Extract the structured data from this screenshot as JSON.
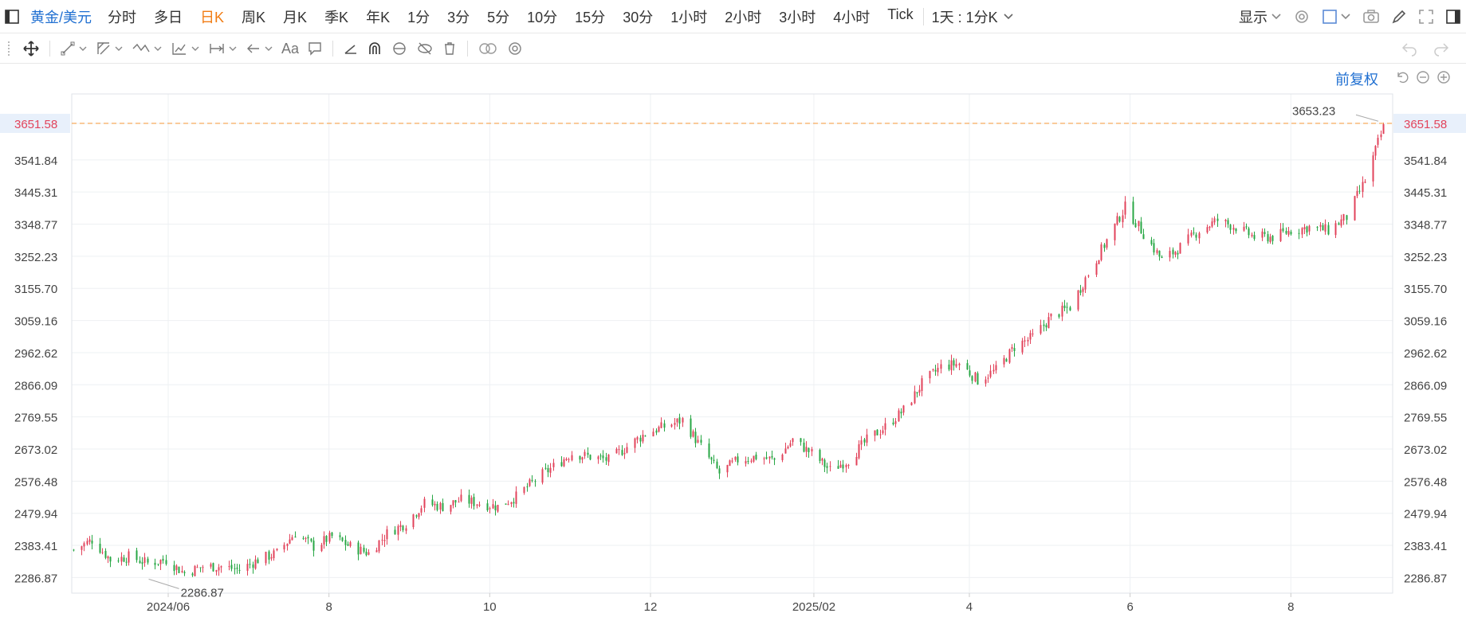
{
  "topbar": {
    "symbol": "黄金/美元",
    "periods": [
      "分时",
      "多日",
      "日K",
      "周K",
      "月K",
      "季K",
      "年K",
      "1分",
      "3分",
      "5分",
      "10分",
      "15分",
      "30分",
      "1小时",
      "2小时",
      "3小时",
      "4小时",
      "Tick"
    ],
    "active_period": "日K",
    "compare_dropdown": "1天 : 1分K",
    "display_label": "显示"
  },
  "toolbar": {
    "text_tool_label": "Aa"
  },
  "adjust": {
    "label": "前复权"
  },
  "colors": {
    "up": "#e2435b",
    "down": "#28a745",
    "accent": "#1f6fd1",
    "active": "#f17c13",
    "price_line": "#f5a04a"
  },
  "chart_data": {
    "type": "candlestick",
    "y_ticks": [
      "3651.58",
      "3541.84",
      "3445.31",
      "3348.77",
      "3252.23",
      "3155.70",
      "3059.16",
      "2962.62",
      "2866.09",
      "2769.55",
      "2673.02",
      "2576.48",
      "2479.94",
      "2383.41",
      "2286.87"
    ],
    "x_ticks": [
      "2024/06",
      "8",
      "10",
      "12",
      "2025/02",
      "4",
      "6",
      "8"
    ],
    "current_price": "3651.58",
    "high_marker": "3653.23",
    "low_marker": "2286.87",
    "ylim": [
      2240,
      3740
    ],
    "x_range": [
      "2024/04/26",
      "2025/09/05"
    ],
    "grid": true,
    "closes_anchor_dates": [
      "2024/04/26",
      "2024/05/03",
      "2024/05/10",
      "2024/05/17",
      "2024/05/24",
      "2024/05/31",
      "2024/06/07",
      "2024/06/14",
      "2024/06/21",
      "2024/06/28",
      "2024/07/05",
      "2024/07/12",
      "2024/07/19",
      "2024/07/26",
      "2024/08/02",
      "2024/08/09",
      "2024/08/16",
      "2024/08/23",
      "2024/08/30",
      "2024/09/06",
      "2024/09/13",
      "2024/09/20",
      "2024/09/27",
      "2024/10/04",
      "2024/10/11",
      "2024/10/18",
      "2024/10/25",
      "2024/11/01",
      "2024/11/08",
      "2024/11/15",
      "2024/11/22",
      "2024/11/29",
      "2024/12/06",
      "2024/12/13",
      "2024/12/20",
      "2024/12/27",
      "2025/01/03",
      "2025/01/10",
      "2025/01/17",
      "2025/01/24",
      "2025/01/31",
      "2025/02/07",
      "2025/02/14",
      "2025/02/21",
      "2025/02/28",
      "2025/03/07",
      "2025/03/14",
      "2025/03/21",
      "2025/03/28",
      "2025/04/04",
      "2025/04/11",
      "2025/04/18",
      "2025/04/25",
      "2025/05/02",
      "2025/05/09",
      "2025/05/16",
      "2025/05/23",
      "2025/05/30",
      "2025/06/06",
      "2025/06/13",
      "2025/06/20",
      "2025/06/27",
      "2025/07/04",
      "2025/07/11",
      "2025/07/18",
      "2025/07/25",
      "2025/08/01",
      "2025/08/08",
      "2025/08/15",
      "2025/08/22",
      "2025/08/29",
      "2025/09/05"
    ],
    "closes": [
      2370,
      2400,
      2340,
      2350,
      2330,
      2340,
      2300,
      2320,
      2320,
      2310,
      2340,
      2360,
      2420,
      2380,
      2410,
      2380,
      2360,
      2420,
      2450,
      2510,
      2500,
      2520,
      2510,
      2500,
      2530,
      2580,
      2620,
      2660,
      2650,
      2640,
      2680,
      2720,
      2740,
      2760,
      2680,
      2600,
      2640,
      2650,
      2640,
      2700,
      2660,
      2610,
      2640,
      2700,
      2740,
      2790,
      2870,
      2920,
      2930,
      2880,
      2910,
      2980,
      3010,
      3070,
      3100,
      3200,
      3300,
      3400,
      3320,
      3240,
      3280,
      3330,
      3360,
      3340,
      3310,
      3310,
      3330,
      3340,
      3330,
      3370,
      3480,
      3640
    ]
  }
}
